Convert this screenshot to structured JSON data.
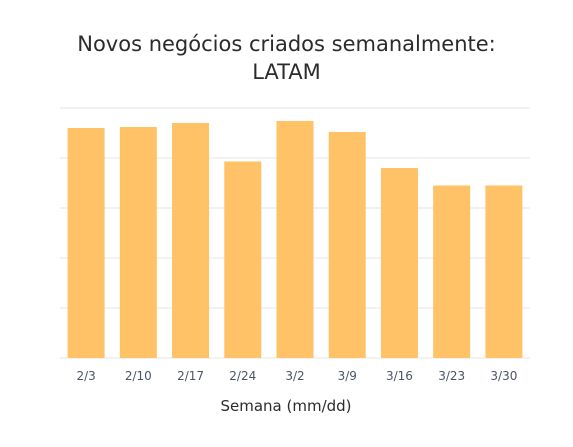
{
  "chart_data": {
    "type": "bar",
    "title_lines": [
      "Novos negócios criados semanalmente:",
      "LATAM"
    ],
    "categories": [
      "2/3",
      "2/10",
      "2/17",
      "2/24",
      "3/2",
      "3/9",
      "3/16",
      "3/23",
      "3/30"
    ],
    "values": [
      4.6,
      4.62,
      4.7,
      3.93,
      4.74,
      4.52,
      3.8,
      3.45,
      3.45
    ],
    "xlabel": "Semana (mm/dd)",
    "ylabel": "",
    "ylim": [
      0,
      5
    ],
    "grid": true,
    "bar_color": "#ffc266",
    "grid_color": "#e6e6e6"
  }
}
